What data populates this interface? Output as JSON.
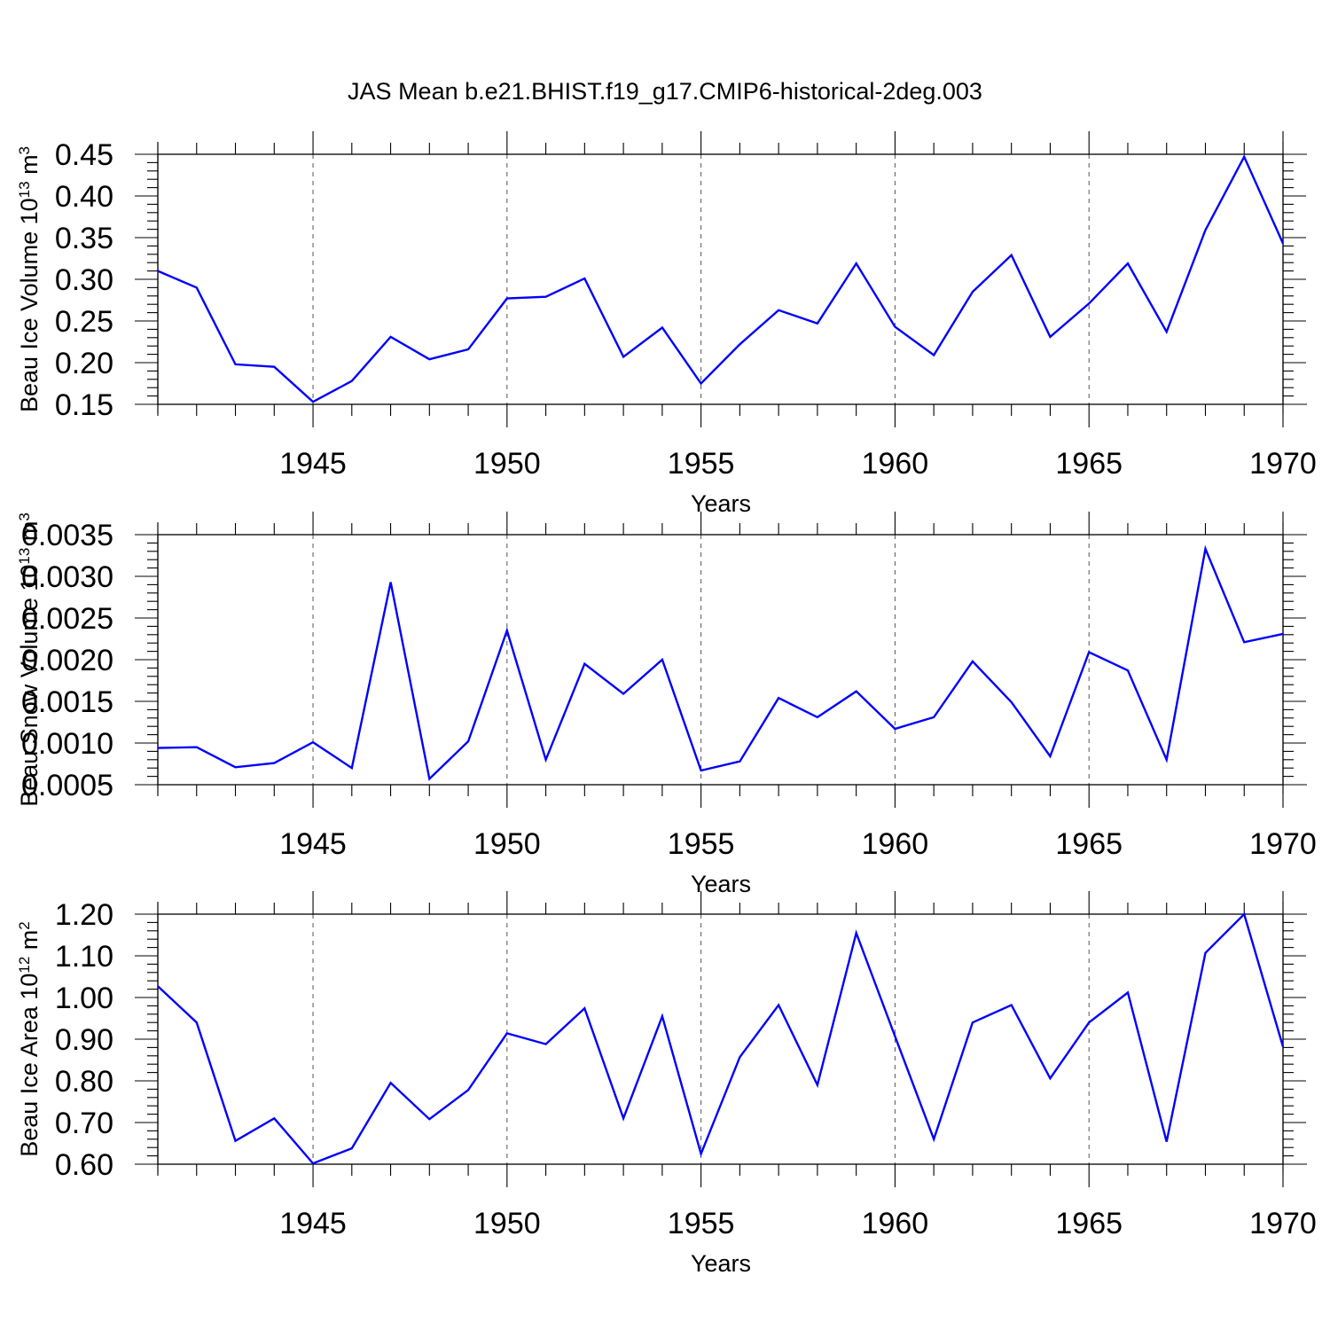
{
  "title": "JAS Mean b.e21.BHIST.f19_g17.CMIP6-historical-2deg.003",
  "colors": {
    "line": "#0000ff",
    "axis": "#000000",
    "grid": "#555555"
  },
  "chart_data": [
    {
      "type": "line",
      "name": "ice-volume",
      "ylabel": {
        "text": "Beau Ice Volume 10",
        "sup": "13",
        "unit": " m",
        "unit_sup": "3"
      },
      "xlabel": "Years",
      "xlim": [
        1941,
        1970
      ],
      "ylim": [
        0.15,
        0.45
      ],
      "yticks": [
        "0.15",
        "0.20",
        "0.25",
        "0.30",
        "0.35",
        "0.40",
        "0.45"
      ],
      "xticks": [
        "1945",
        "1950",
        "1955",
        "1960",
        "1965",
        "1970"
      ],
      "grid": "vertical dashed at major x ticks",
      "x": [
        1941,
        1942,
        1943,
        1944,
        1945,
        1946,
        1947,
        1948,
        1949,
        1950,
        1951,
        1952,
        1953,
        1954,
        1955,
        1956,
        1957,
        1958,
        1959,
        1960,
        1961,
        1962,
        1963,
        1964,
        1965,
        1966,
        1967,
        1968,
        1969,
        1970
      ],
      "values": [
        0.31,
        0.29,
        0.198,
        0.195,
        0.153,
        0.178,
        0.231,
        0.204,
        0.216,
        0.277,
        0.279,
        0.301,
        0.207,
        0.242,
        0.175,
        0.222,
        0.263,
        0.247,
        0.319,
        0.243,
        0.209,
        0.285,
        0.329,
        0.231,
        0.271,
        0.319,
        0.237,
        0.359,
        0.447,
        0.343
      ]
    },
    {
      "type": "line",
      "name": "snow-volume",
      "ylabel": {
        "text": "Beau Snow Volume 10",
        "sup": "13",
        "unit": " m",
        "unit_sup": "3"
      },
      "xlabel": "Years",
      "xlim": [
        1941,
        1970
      ],
      "ylim": [
        0.0005,
        0.0035
      ],
      "yticks": [
        "0.0005",
        "0.0010",
        "0.0015",
        "0.0020",
        "0.0025",
        "0.0030",
        "0.0035"
      ],
      "xticks": [
        "1945",
        "1950",
        "1955",
        "1960",
        "1965",
        "1970"
      ],
      "grid": "vertical dashed at major x ticks",
      "x": [
        1941,
        1942,
        1943,
        1944,
        1945,
        1946,
        1947,
        1948,
        1949,
        1950,
        1951,
        1952,
        1953,
        1954,
        1955,
        1956,
        1957,
        1958,
        1959,
        1960,
        1961,
        1962,
        1963,
        1964,
        1965,
        1966,
        1967,
        1968,
        1969,
        1970
      ],
      "values": [
        0.00094,
        0.00095,
        0.00071,
        0.00076,
        0.00101,
        0.0007,
        0.00293,
        0.00057,
        0.00102,
        0.00235,
        0.0008,
        0.00195,
        0.00159,
        0.002,
        0.00067,
        0.00078,
        0.00154,
        0.00131,
        0.00162,
        0.00117,
        0.00131,
        0.00198,
        0.00149,
        0.00084,
        0.00209,
        0.00187,
        0.0008,
        0.00333,
        0.00221,
        0.00231
      ]
    },
    {
      "type": "line",
      "name": "ice-area",
      "ylabel": {
        "text": "Beau Ice Area 10",
        "sup": "12",
        "unit": " m",
        "unit_sup": "2"
      },
      "xlabel": "Years",
      "xlim": [
        1941,
        1970
      ],
      "ylim": [
        0.6,
        1.2
      ],
      "yticks": [
        "0.60",
        "0.70",
        "0.80",
        "0.90",
        "1.00",
        "1.10",
        "1.20"
      ],
      "xticks": [
        "1945",
        "1950",
        "1955",
        "1960",
        "1965",
        "1970"
      ],
      "grid": "vertical dashed at major x ticks",
      "x": [
        1941,
        1942,
        1943,
        1944,
        1945,
        1946,
        1947,
        1948,
        1949,
        1950,
        1951,
        1952,
        1953,
        1954,
        1955,
        1956,
        1957,
        1958,
        1959,
        1960,
        1961,
        1962,
        1963,
        1964,
        1965,
        1966,
        1967,
        1968,
        1969,
        1970
      ],
      "values": [
        1.027,
        0.94,
        0.656,
        0.71,
        0.602,
        0.638,
        0.795,
        0.708,
        0.778,
        0.914,
        0.888,
        0.974,
        0.71,
        0.955,
        0.625,
        0.857,
        0.982,
        0.79,
        1.155,
        0.907,
        0.66,
        0.94,
        0.982,
        0.806,
        0.94,
        1.012,
        0.654,
        1.107,
        1.2,
        0.882
      ]
    }
  ]
}
